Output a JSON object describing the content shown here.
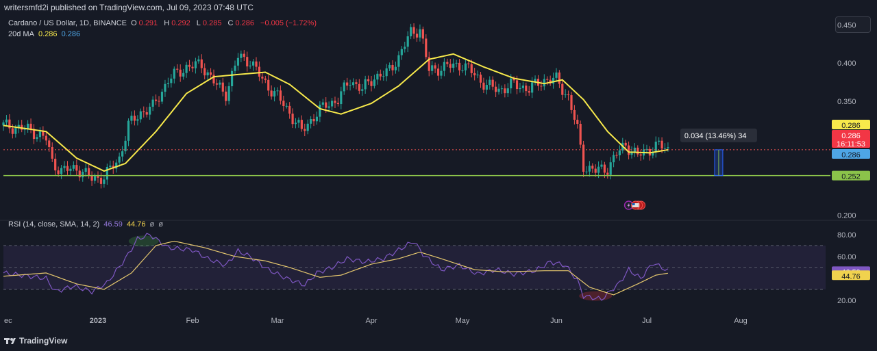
{
  "header": {
    "publisher": "writersmfd2i published on TradingView.com, Jul 09, 2023 07:48 UTC"
  },
  "legend": {
    "symbol": "Cardano / US Dollar, 1D, BINANCE",
    "open_label": "O",
    "open": "0.291",
    "high_label": "H",
    "high": "0.292",
    "low_label": "L",
    "low": "0.285",
    "close_label": "C",
    "close": "0.286",
    "change": "−0.005 (−1.72%)",
    "ma_label": "20d MA",
    "ma_value1": "0.286",
    "ma_value2": "0.286"
  },
  "rsi_legend": {
    "label": "RSI (14, close, SMA, 14, 2)",
    "rsi": "46.59",
    "sma": "44.76",
    "extra1": "ø",
    "extra2": "ø"
  },
  "measure_label": "0.034 (13.46%) 34",
  "footer": {
    "brand": "TradingView"
  },
  "colors": {
    "up": "#26a69a",
    "down": "#ef5350",
    "ma": "#f7e94b",
    "support": "#8bc34a",
    "rsi": "#7e57c2",
    "rsi_sma": "#e6c86e"
  },
  "chart_data": [
    {
      "type": "candlestick",
      "title": "Cardano / US Dollar, 1D, BINANCE",
      "price_axis": {
        "ticks": [
          "0.450",
          "0.400",
          "0.350",
          "0.200"
        ],
        "ylim": [
          0.195,
          0.465
        ]
      },
      "time_axis": {
        "ticks": [
          "ec",
          "2023",
          "Feb",
          "Mar",
          "Apr",
          "May",
          "Jun",
          "Jul",
          "Aug"
        ]
      },
      "price_labels": {
        "ma_tag": "0.286",
        "last_price": "0.286",
        "countdown": "16:11:53",
        "ma_tag2": "0.286",
        "support": "0.252"
      },
      "support_level": 0.252,
      "x_dates": [
        "Dec 01",
        "Jan 01",
        "Feb 01",
        "Mar 01",
        "Apr 01",
        "May 01",
        "Jun 01",
        "Jul 01",
        "Jul 08"
      ],
      "close_points": [
        [
          "Dec 01",
          0.318
        ],
        [
          "Dec 10",
          0.312
        ],
        [
          "Dec 15",
          0.3
        ],
        [
          "Dec 17",
          0.27
        ],
        [
          "Dec 20",
          0.258
        ],
        [
          "Dec 25",
          0.262
        ],
        [
          "Dec 30",
          0.248
        ],
        [
          "Jan 03",
          0.25
        ],
        [
          "Jan 08",
          0.275
        ],
        [
          "Jan 11",
          0.318
        ],
        [
          "Jan 15",
          0.335
        ],
        [
          "Jan 19",
          0.342
        ],
        [
          "Jan 24",
          0.378
        ],
        [
          "Jan 30",
          0.395
        ],
        [
          "Feb 04",
          0.398
        ],
        [
          "Feb 09",
          0.37
        ],
        [
          "Feb 12",
          0.36
        ],
        [
          "Feb 16",
          0.408
        ],
        [
          "Feb 20",
          0.403
        ],
        [
          "Feb 24",
          0.378
        ],
        [
          "Mar 01",
          0.356
        ],
        [
          "Mar 05",
          0.335
        ],
        [
          "Mar 09",
          0.31
        ],
        [
          "Mar 13",
          0.33
        ],
        [
          "Mar 17",
          0.345
        ],
        [
          "Mar 21",
          0.352
        ],
        [
          "Mar 25",
          0.378
        ],
        [
          "Mar 29",
          0.365
        ],
        [
          "Apr 02",
          0.382
        ],
        [
          "Apr 06",
          0.386
        ],
        [
          "Apr 10",
          0.408
        ],
        [
          "Apr 14",
          0.44
        ],
        [
          "Apr 17",
          0.445
        ],
        [
          "Apr 20",
          0.39
        ],
        [
          "Apr 25",
          0.395
        ],
        [
          "May 01",
          0.398
        ],
        [
          "May 05",
          0.385
        ],
        [
          "May 09",
          0.37
        ],
        [
          "May 13",
          0.365
        ],
        [
          "May 18",
          0.372
        ],
        [
          "May 23",
          0.366
        ],
        [
          "May 28",
          0.378
        ],
        [
          "Jun 01",
          0.378
        ],
        [
          "Jun 05",
          0.355
        ],
        [
          "Jun 08",
          0.312
        ],
        [
          "Jun 10",
          0.265
        ],
        [
          "Jun 14",
          0.258
        ],
        [
          "Jun 18",
          0.262
        ],
        [
          "Jun 21",
          0.28
        ],
        [
          "Jun 24",
          0.293
        ],
        [
          "Jun 28",
          0.278
        ],
        [
          "Jul 01",
          0.285
        ],
        [
          "Jul 05",
          0.292
        ],
        [
          "Jul 08",
          0.286
        ]
      ],
      "ma_points": [
        [
          "Dec 01",
          0.318
        ],
        [
          "Dec 15",
          0.31
        ],
        [
          "Dec 25",
          0.275
        ],
        [
          "Jan 03",
          0.258
        ],
        [
          "Jan 10",
          0.268
        ],
        [
          "Jan 20",
          0.31
        ],
        [
          "Jan 30",
          0.36
        ],
        [
          "Feb 08",
          0.382
        ],
        [
          "Feb 16",
          0.385
        ],
        [
          "Feb 25",
          0.388
        ],
        [
          "Mar 05",
          0.372
        ],
        [
          "Mar 15",
          0.34
        ],
        [
          "Mar 22",
          0.333
        ],
        [
          "Apr 01",
          0.347
        ],
        [
          "Apr 10",
          0.37
        ],
        [
          "Apr 20",
          0.405
        ],
        [
          "Apr 28",
          0.412
        ],
        [
          "May 08",
          0.395
        ],
        [
          "May 18",
          0.38
        ],
        [
          "May 28",
          0.373
        ],
        [
          "Jun 03",
          0.378
        ],
        [
          "Jun 10",
          0.352
        ],
        [
          "Jun 18",
          0.31
        ],
        [
          "Jun 25",
          0.283
        ],
        [
          "Jul 02",
          0.282
        ],
        [
          "Jul 08",
          0.286
        ]
      ]
    },
    {
      "type": "line",
      "title": "RSI (14, close, SMA, 14, 2)",
      "axis": {
        "ticks": [
          "80.00",
          "60.00",
          "20.00"
        ],
        "ylim": [
          10,
          88
        ]
      },
      "price_labels": {
        "rsi": "46.59",
        "sma": "44.76"
      },
      "bands": [
        70,
        50,
        30
      ],
      "series": [
        {
          "name": "RSI",
          "points": [
            [
              "Dec 01",
              45
            ],
            [
              "Dec 15",
              40
            ],
            [
              "Dec 18",
              28
            ],
            [
              "Dec 24",
              33
            ],
            [
              "Dec 30",
              28
            ],
            [
              "Jan 04",
              36
            ],
            [
              "Jan 10",
              58
            ],
            [
              "Jan 14",
              76
            ],
            [
              "Jan 18",
              80
            ],
            [
              "Jan 24",
              68
            ],
            [
              "Feb 01",
              66
            ],
            [
              "Feb 06",
              58
            ],
            [
              "Feb 12",
              52
            ],
            [
              "Feb 16",
              65
            ],
            [
              "Feb 20",
              60
            ],
            [
              "Feb 26",
              48
            ],
            [
              "Mar 04",
              40
            ],
            [
              "Mar 10",
              34
            ],
            [
              "Mar 14",
              45
            ],
            [
              "Mar 19",
              50
            ],
            [
              "Mar 24",
              58
            ],
            [
              "Mar 30",
              55
            ],
            [
              "Apr 05",
              58
            ],
            [
              "Apr 10",
              66
            ],
            [
              "Apr 15",
              74
            ],
            [
              "Apr 18",
              62
            ],
            [
              "Apr 24",
              48
            ],
            [
              "Apr 30",
              52
            ],
            [
              "May 06",
              44
            ],
            [
              "May 12",
              48
            ],
            [
              "May 18",
              44
            ],
            [
              "May 25",
              47
            ],
            [
              "May 30",
              55
            ],
            [
              "Jun 04",
              52
            ],
            [
              "Jun 08",
              38
            ],
            [
              "Jun 10",
              24
            ],
            [
              "Jun 16",
              21
            ],
            [
              "Jun 22",
              36
            ],
            [
              "Jun 25",
              48
            ],
            [
              "Jun 29",
              40
            ],
            [
              "Jul 03",
              54
            ],
            [
              "Jul 06",
              50
            ],
            [
              "Jul 08",
              46.59
            ]
          ]
        },
        {
          "name": "SMA",
          "points": [
            [
              "Dec 01",
              42
            ],
            [
              "Dec 15",
              45
            ],
            [
              "Dec 25",
              35
            ],
            [
              "Jan 03",
              30
            ],
            [
              "Jan 12",
              45
            ],
            [
              "Jan 20",
              70
            ],
            [
              "Jan 26",
              74
            ],
            [
              "Feb 05",
              68
            ],
            [
              "Feb 15",
              60
            ],
            [
              "Feb 25",
              56
            ],
            [
              "Mar 05",
              50
            ],
            [
              "Mar 15",
              41
            ],
            [
              "Mar 22",
              43
            ],
            [
              "Apr 01",
              53
            ],
            [
              "Apr 10",
              58
            ],
            [
              "Apr 17",
              64
            ],
            [
              "Apr 24",
              58
            ],
            [
              "May 05",
              48
            ],
            [
              "May 15",
              46
            ],
            [
              "May 28",
              47
            ],
            [
              "Jun 05",
              47
            ],
            [
              "Jun 12",
              32
            ],
            [
              "Jun 20",
              25
            ],
            [
              "Jun 28",
              35
            ],
            [
              "Jul 04",
              43
            ],
            [
              "Jul 08",
              44.76
            ]
          ]
        }
      ]
    }
  ]
}
